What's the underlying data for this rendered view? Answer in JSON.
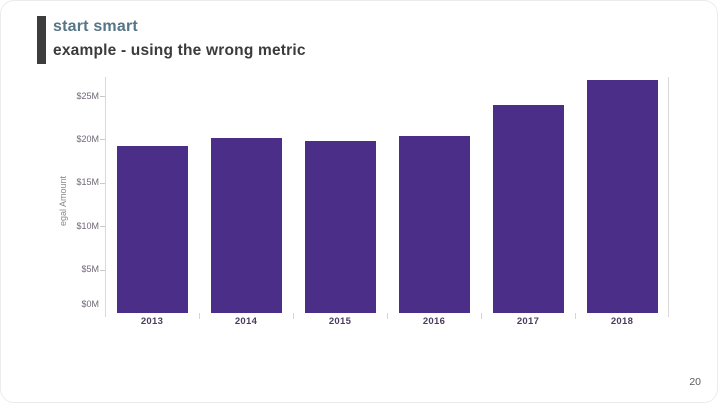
{
  "header": {
    "kicker": "start smart",
    "title": "example - using the wrong metric"
  },
  "footer": {
    "page_number": "20"
  },
  "chart_data": {
    "type": "bar",
    "title": "",
    "categories": [
      "2013",
      "2014",
      "2015",
      "2016",
      "2017",
      "2018"
    ],
    "values": [
      19.2,
      20.2,
      19.8,
      20.4,
      24.0,
      26.9
    ],
    "unit": "$M",
    "xlabel": "",
    "ylabel": "egal Amount",
    "y_ticks": [
      "$0M",
      "$5M",
      "$10M",
      "$15M",
      "$20M",
      "$25M"
    ],
    "y_tick_values": [
      0,
      5,
      10,
      15,
      20,
      25
    ],
    "ylim": [
      0,
      27.2
    ],
    "bar_color": "#4b2e87",
    "grid": "off",
    "legend": "none"
  },
  "colors": {
    "accent_bar": "#3d3d3d",
    "kicker_text": "#567586",
    "subtitle_text": "#3b3b3b",
    "bar": "#4b2e87",
    "axis_line": "#d9d9d9",
    "tick_text": "#6f6878",
    "year_text": "#4b3c5e"
  }
}
